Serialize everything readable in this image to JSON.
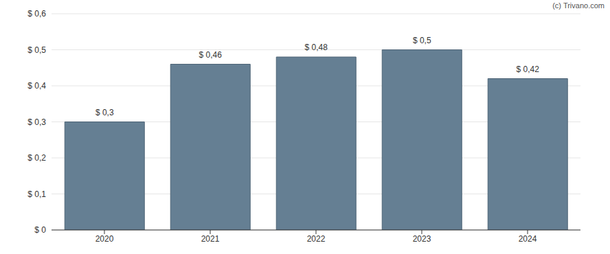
{
  "chart_data": {
    "type": "bar",
    "annotation": "(c) Trivano.com",
    "categories": [
      "2020",
      "2021",
      "2022",
      "2023",
      "2024"
    ],
    "values": [
      0.3,
      0.46,
      0.48,
      0.5,
      0.42
    ],
    "value_labels": [
      "$ 0,3",
      "$ 0,46",
      "$ 0,48",
      "$ 0,5",
      "$ 0,42"
    ],
    "data_labels": true,
    "color": "#657f93",
    "ylim": [
      0,
      0.6
    ],
    "yticks": [
      {
        "value": 0,
        "label": "$ 0"
      },
      {
        "value": 0.1,
        "label": "$ 0,1"
      },
      {
        "value": 0.2,
        "label": "$ 0,2"
      },
      {
        "value": 0.3,
        "label": "$ 0,3"
      },
      {
        "value": 0.4,
        "label": "$ 0,4"
      },
      {
        "value": 0.5,
        "label": "$ 0,5"
      },
      {
        "value": 0.6,
        "label": "$ 0,6"
      }
    ],
    "grid": true
  }
}
